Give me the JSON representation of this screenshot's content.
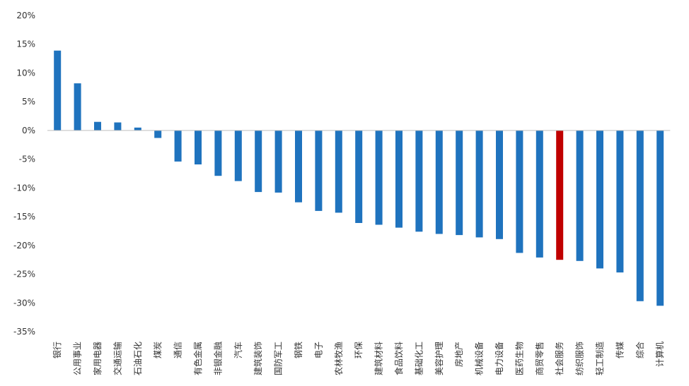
{
  "chart_data": {
    "type": "bar",
    "title": "",
    "xlabel": "",
    "ylabel": "",
    "ylim": [
      -0.35,
      0.2
    ],
    "y_ticks": [
      "20%",
      "15%",
      "10%",
      "5%",
      "0%",
      "-5%",
      "-10%",
      "-15%",
      "-20%",
      "-25%",
      "-30%",
      "-35%"
    ],
    "grid": false,
    "legend": "none",
    "categories": [
      "银行",
      "公用事业",
      "家用电器",
      "交通运输",
      "石油石化",
      "煤炭",
      "通信",
      "有色金属",
      "非银金融",
      "汽车",
      "建筑装饰",
      "国防军工",
      "钢铁",
      "电子",
      "农林牧渔",
      "环保",
      "建筑材料",
      "食品饮料",
      "基础化工",
      "美容护理",
      "房地产",
      "机械设备",
      "电力设备",
      "医药生物",
      "商贸零售",
      "社会服务",
      "纺织服饰",
      "轻工制造",
      "传媒",
      "综合",
      "计算机"
    ],
    "values": [
      0.139,
      0.082,
      0.015,
      0.014,
      0.005,
      -0.013,
      -0.054,
      -0.059,
      -0.079,
      -0.088,
      -0.107,
      -0.108,
      -0.125,
      -0.14,
      -0.143,
      -0.161,
      -0.164,
      -0.169,
      -0.176,
      -0.18,
      -0.182,
      -0.186,
      -0.189,
      -0.213,
      -0.221,
      -0.225,
      -0.227,
      -0.24,
      -0.247,
      -0.297,
      -0.305
    ],
    "bar_color": "#1f73be",
    "highlight_color": "#c00000",
    "highlight_category": "社会服务",
    "axis_color": "#bfbfbf"
  }
}
